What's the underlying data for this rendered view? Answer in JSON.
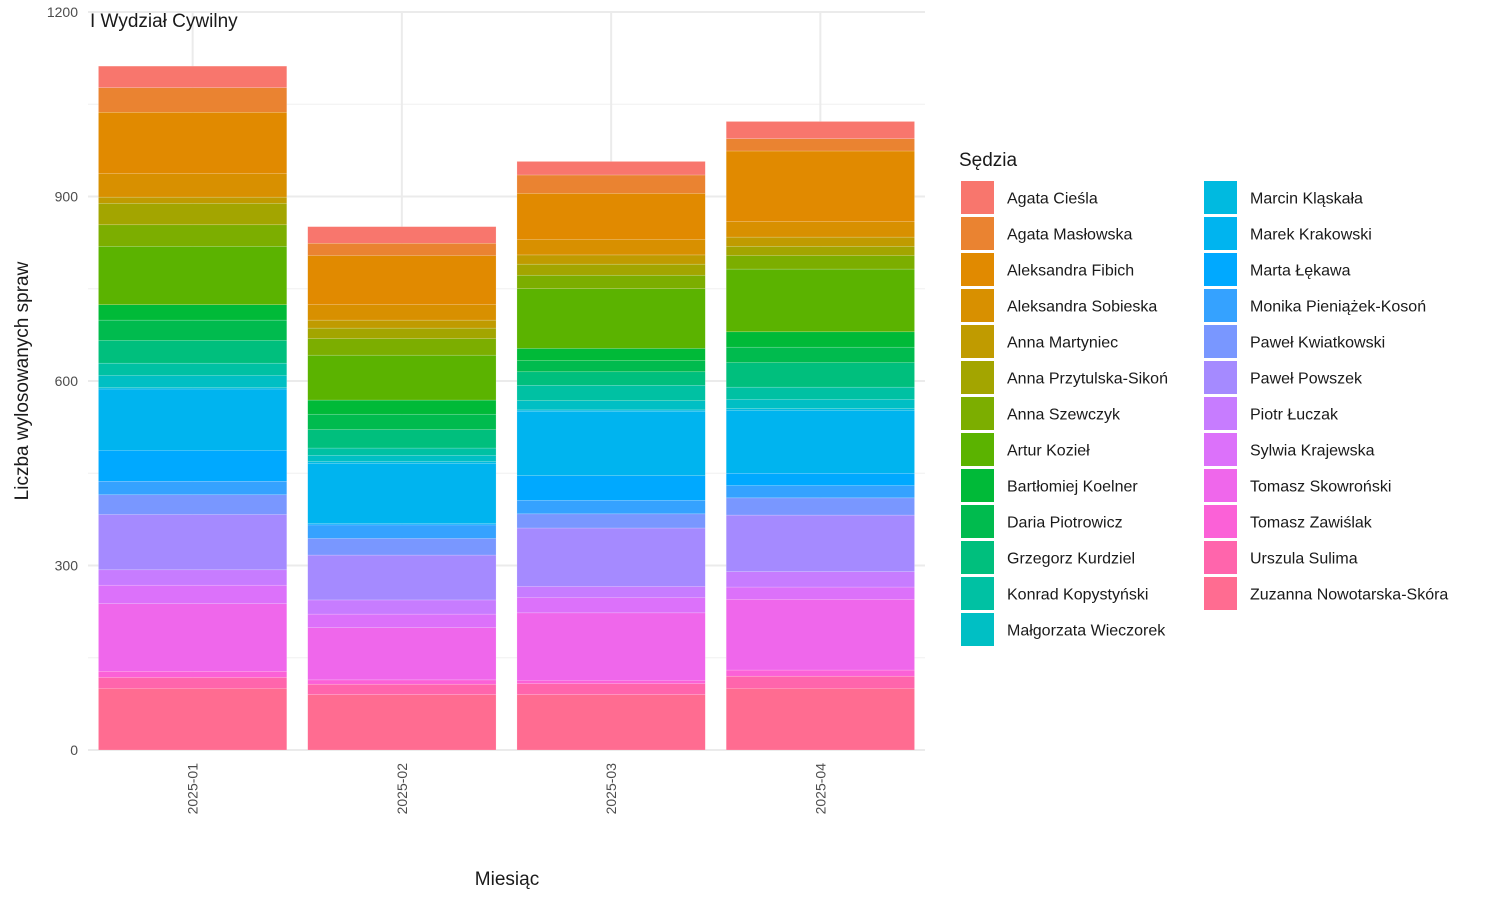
{
  "chart_data": {
    "type": "bar",
    "stacked": true,
    "title": "I Wydział Cywilny",
    "xlabel": "Miesiąc",
    "ylabel": "Liczba wylosowanych spraw",
    "ylim": [
      0,
      1200
    ],
    "y_ticks": [
      0,
      300,
      600,
      900,
      1200
    ],
    "grid": true,
    "legend_position": "right",
    "legend_title": "Sędzia",
    "categories": [
      "2025-01",
      "2025-02",
      "2025-03",
      "2025-04"
    ],
    "series": [
      {
        "name": "Agata Cieśla",
        "color": "#F8766D",
        "values": [
          35,
          27,
          22,
          28
        ]
      },
      {
        "name": "Agata Masłowska",
        "color": "#EA8331",
        "values": [
          40,
          20,
          30,
          20
        ]
      },
      {
        "name": "Aleksandra Fibich",
        "color": "#E18A00",
        "values": [
          100,
          80,
          75,
          115
        ]
      },
      {
        "name": "Aleksandra Sobieska",
        "color": "#D89000",
        "values": [
          38,
          25,
          25,
          25
        ]
      },
      {
        "name": "Anna Martyniec",
        "color": "#C09B00",
        "values": [
          10,
          13,
          15,
          15
        ]
      },
      {
        "name": "Anna Przytulska-Sikoń",
        "color": "#A3A500",
        "values": [
          35,
          17,
          18,
          15
        ]
      },
      {
        "name": "Anna Szewczyk",
        "color": "#7CAE00",
        "values": [
          35,
          27,
          22,
          22
        ]
      },
      {
        "name": "Artur Kozieł",
        "color": "#5BB300",
        "values": [
          95,
          73,
          97,
          102
        ]
      },
      {
        "name": "Bartłomiej Koelner",
        "color": "#00BA38",
        "values": [
          25,
          23,
          20,
          25
        ]
      },
      {
        "name": "Daria Piotrowicz",
        "color": "#00BB4E",
        "values": [
          33,
          25,
          18,
          25
        ]
      },
      {
        "name": "Grzegorz Kurdziel",
        "color": "#00BF7D",
        "values": [
          37,
          30,
          22,
          40
        ]
      },
      {
        "name": "Konrad Kopystyński",
        "color": "#00C1A3",
        "values": [
          20,
          12,
          25,
          20
        ]
      },
      {
        "name": "Małgorzata Wieczorek",
        "color": "#00BFC4",
        "values": [
          20,
          10,
          15,
          15
        ]
      },
      {
        "name": "Marcin Kląskała",
        "color": "#00BAE0",
        "values": [
          2,
          3,
          2,
          3
        ]
      },
      {
        "name": "Marek Krakowski",
        "color": "#00B4EF",
        "values": [
          100,
          98,
          105,
          102
        ]
      },
      {
        "name": "Marta Łękawa",
        "color": "#00A9FF",
        "values": [
          50,
          2,
          40,
          20
        ]
      },
      {
        "name": "Monika Pieniążek-Kosoń",
        "color": "#35A2FF",
        "values": [
          22,
          22,
          22,
          20
        ]
      },
      {
        "name": "Paweł Kwiatkowski",
        "color": "#7997FF",
        "values": [
          32,
          27,
          23,
          28
        ]
      },
      {
        "name": "Paweł Powszek",
        "color": "#A58AFF",
        "values": [
          90,
          73,
          95,
          92
        ]
      },
      {
        "name": "Piotr Łuczak",
        "color": "#C77CFF",
        "values": [
          25,
          23,
          18,
          25
        ]
      },
      {
        "name": "Sylwia Krajewska",
        "color": "#DC71FA",
        "values": [
          30,
          22,
          25,
          20
        ]
      },
      {
        "name": "Tomasz Skowroński",
        "color": "#EF67EB",
        "values": [
          110,
          85,
          110,
          115
        ]
      },
      {
        "name": "Tomasz Zawiślak",
        "color": "#FB61D7",
        "values": [
          10,
          7,
          5,
          10
        ]
      },
      {
        "name": "Urszula Sulima",
        "color": "#FF65AC",
        "values": [
          18,
          17,
          18,
          20
        ]
      },
      {
        "name": "Zuzanna Nowotarska-Skóra",
        "color": "#FF6C91",
        "values": [
          100,
          90,
          90,
          100
        ]
      }
    ]
  }
}
